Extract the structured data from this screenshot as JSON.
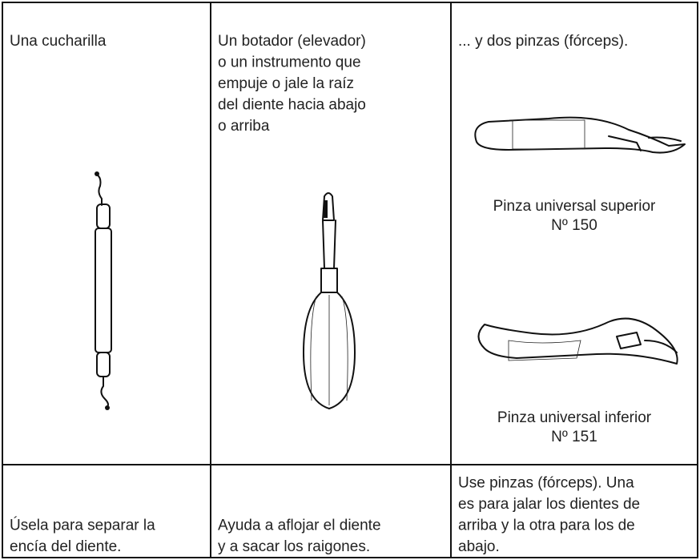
{
  "columns": [
    {
      "heading": [
        "Una cucharilla"
      ],
      "footer": [
        "Úsela para separar la",
        "encía del diente."
      ]
    },
    {
      "heading": [
        "Un botador (elevador)",
        "o un instrumento que",
        "empuje o jale la raíz",
        "del diente hacia abajo",
        "o arriba"
      ],
      "footer": [
        "Ayuda a aflojar el diente",
        "y a sacar los raigones."
      ]
    },
    {
      "heading": [
        "... y dos pinzas (fórceps)."
      ],
      "captions": [
        [
          "Pinza universal superior",
          "Nº 150"
        ],
        [
          "Pinza universal inferior",
          "Nº 151"
        ]
      ],
      "footer": [
        "Use pinzas (fórceps). Una",
        "es para jalar los dientes de",
        "arriba y la otra para los de",
        "abajo."
      ]
    }
  ]
}
